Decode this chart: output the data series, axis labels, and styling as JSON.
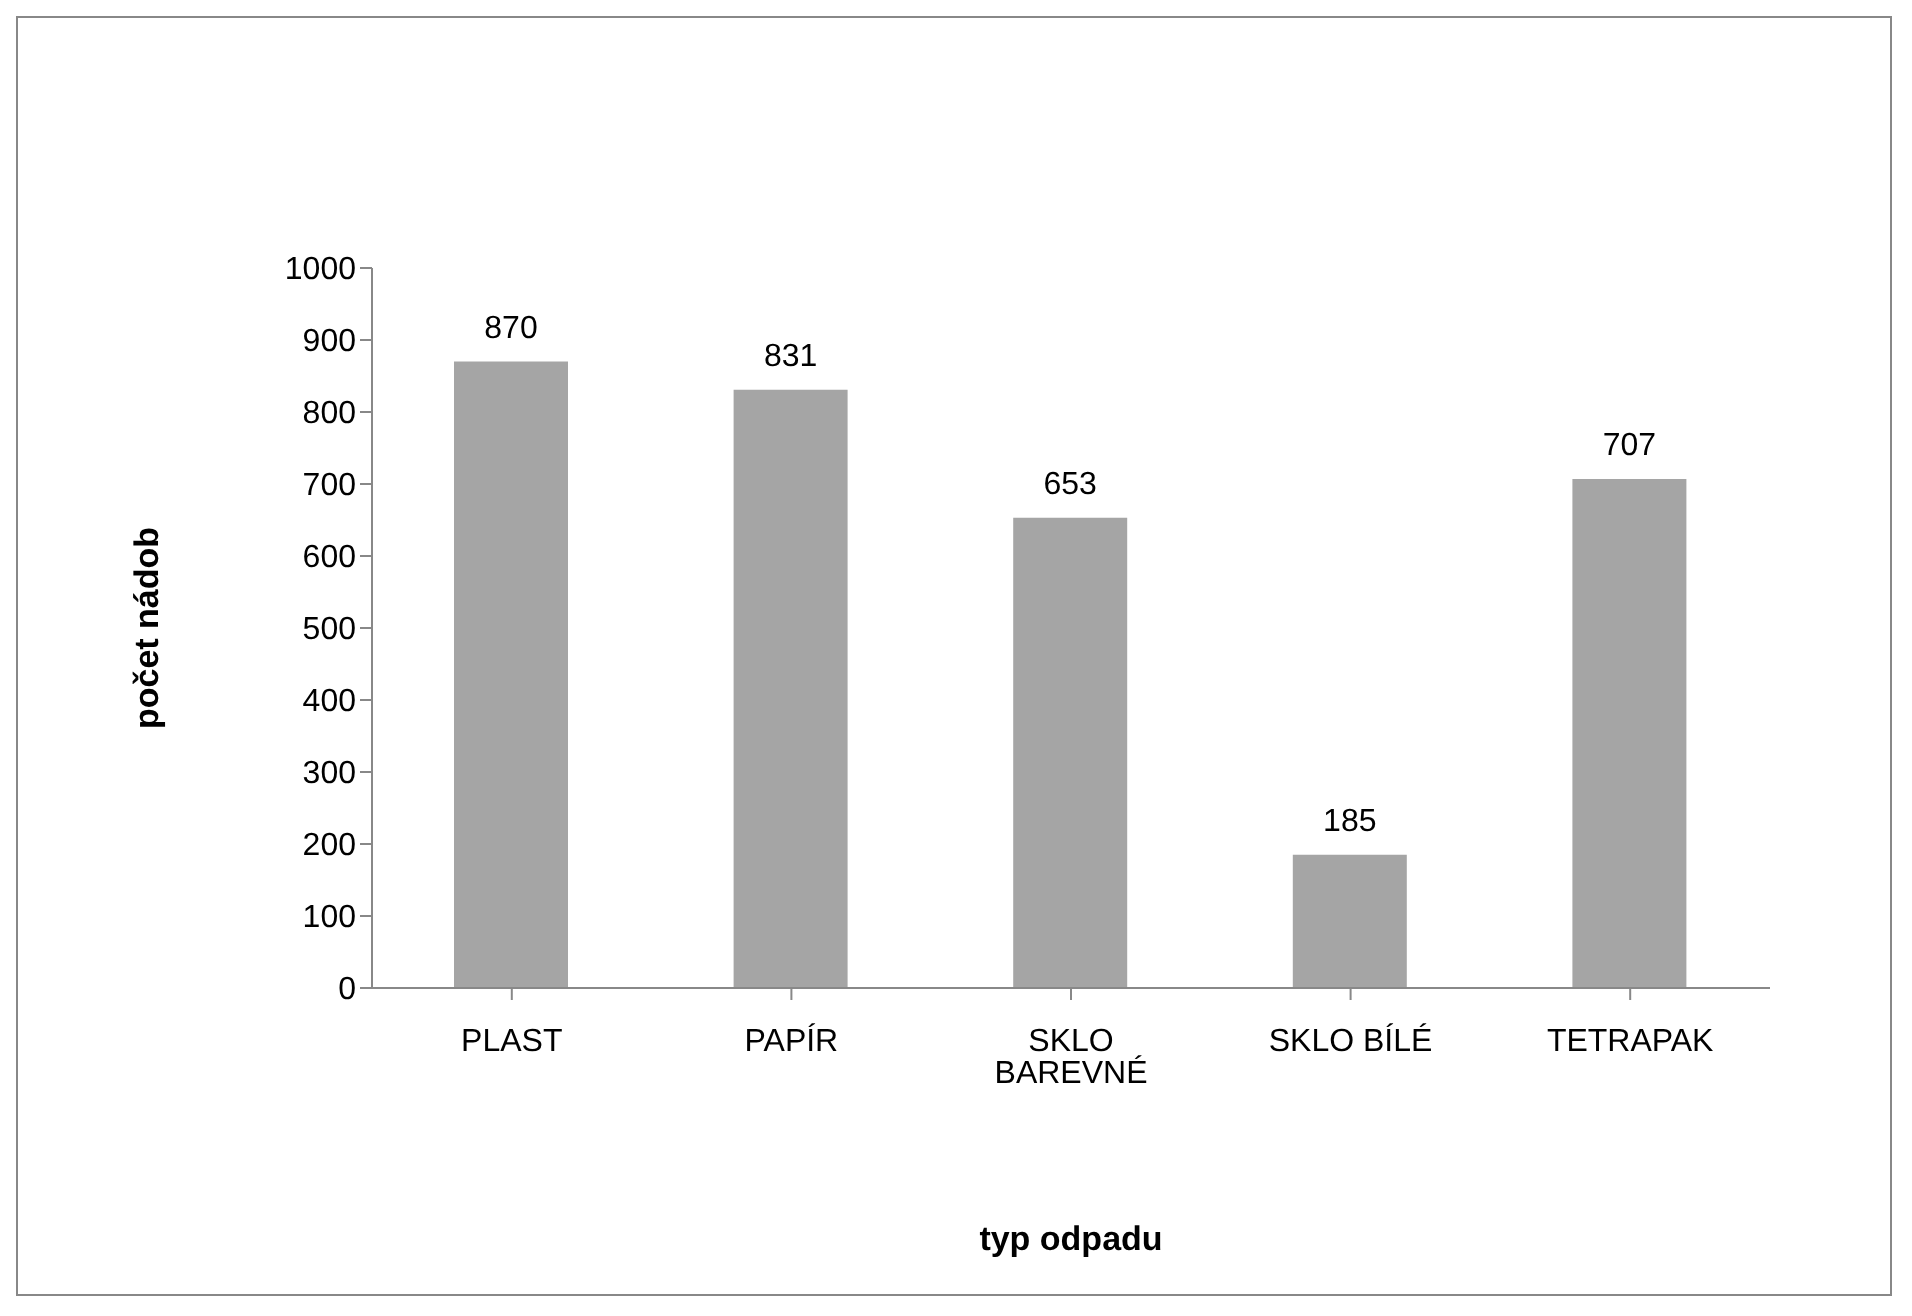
{
  "chart_data": {
    "type": "bar",
    "xlabel": "typ odpadu",
    "ylabel": "počet nádob",
    "categories": [
      "PLAST",
      "PAPÍR",
      "SKLO BAREVNÉ",
      "SKLO BÍLÉ",
      "TETRAPAK"
    ],
    "values": [
      870,
      831,
      653,
      185,
      707
    ],
    "color": "#a5a5a5",
    "ylim": [
      0,
      1000
    ],
    "yticks": [
      0,
      100,
      200,
      300,
      400,
      500,
      600,
      700,
      800,
      900,
      1000
    ],
    "grid": false,
    "legend": false,
    "data_labels": true
  }
}
